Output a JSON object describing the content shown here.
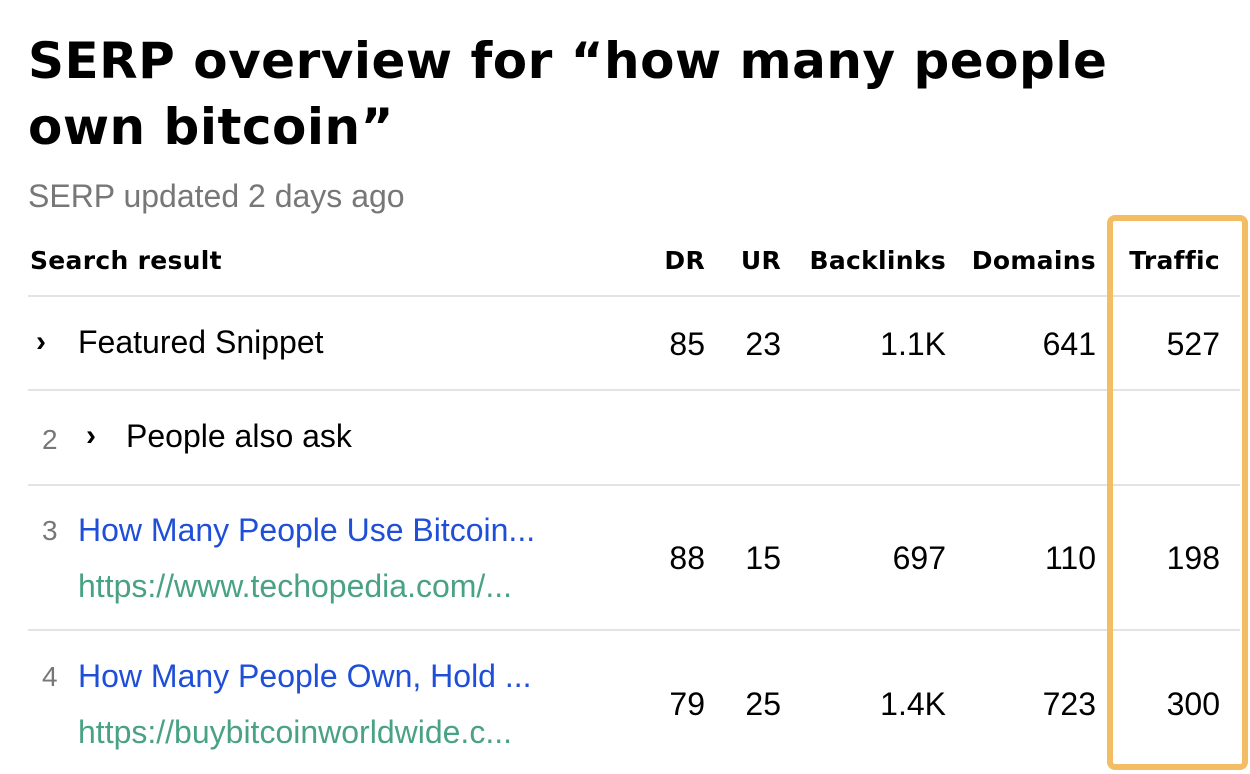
{
  "title": "SERP overview for “how many people own bitcoin”",
  "subtitle": "SERP updated 2 days ago",
  "columns": {
    "result": "Search result",
    "dr": "DR",
    "ur": "UR",
    "backlinks": "Backlinks",
    "domains": "Domains",
    "traffic": "Traffic"
  },
  "highlight_color": "#f3bd65",
  "rows": [
    {
      "pos": "",
      "title": "Featured Snippet",
      "expandable": true,
      "dr": "85",
      "ur": "23",
      "backlinks": "1.1K",
      "domains": "641",
      "traffic": "527"
    },
    {
      "pos": "2",
      "title": "People also ask",
      "expandable": true
    },
    {
      "pos": "3",
      "title": "How Many People Use Bitcoin...",
      "url": "https://www.techopedia.com/...",
      "dr": "88",
      "ur": "15",
      "backlinks": "697",
      "domains": "110",
      "traffic": "198"
    },
    {
      "pos": "4",
      "title": "How Many People Own, Hold ...",
      "url": "https://buybitcoinworldwide.c...",
      "dr": "79",
      "ur": "25",
      "backlinks": "1.4K",
      "domains": "723",
      "traffic": "300"
    }
  ]
}
